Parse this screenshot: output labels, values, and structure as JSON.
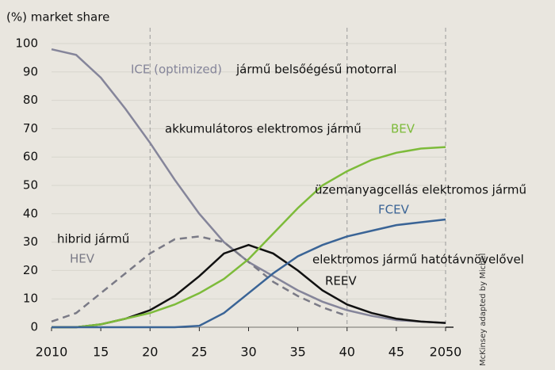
{
  "chart_data": {
    "type": "line",
    "ylabel": "(%) market share",
    "x": [
      2010,
      2012.5,
      2015,
      2017.5,
      2020,
      2022.5,
      2025,
      2027.5,
      2030,
      2032.5,
      2035,
      2037.5,
      2040,
      2042.5,
      2045,
      2047.5,
      2050
    ],
    "series": [
      {
        "name": "ICE (optimized)",
        "color": "#85859a",
        "style": "solid",
        "values": [
          98,
          96,
          88,
          77,
          65,
          52,
          40,
          30,
          23,
          18,
          13,
          9,
          6,
          4,
          2.5,
          2,
          1.5
        ]
      },
      {
        "name": "HEV",
        "color": "#7a7a86",
        "style": "dashed",
        "values": [
          2,
          5,
          12,
          19,
          26,
          31,
          32,
          30,
          23,
          16,
          11,
          7,
          4,
          null,
          null,
          null,
          null
        ]
      },
      {
        "name": "REEV",
        "color": "#111111",
        "style": "solid",
        "values": [
          0,
          0,
          1,
          3,
          6,
          11,
          18,
          26,
          29,
          26,
          20,
          13,
          8,
          5,
          3,
          2,
          1.5
        ]
      },
      {
        "name": "BEV",
        "color": "#7dbb3a",
        "style": "solid",
        "values": [
          0,
          0,
          1,
          3,
          5,
          8,
          12,
          17,
          24,
          33,
          42,
          50,
          55,
          59,
          61.5,
          63,
          63.5
        ]
      },
      {
        "name": "FCEV",
        "color": "#3a6496",
        "style": "solid",
        "values": [
          0,
          0,
          0,
          0,
          0,
          0,
          0.5,
          5,
          12,
          19,
          25,
          29,
          32,
          34,
          36,
          37,
          38
        ]
      }
    ],
    "annotations": [
      "jármű belsőégésű motorral",
      "hibrid jármű",
      "elektromos jármű hatótávnövelővel",
      "akkumulátoros elektromos jármű",
      "üzemanyagcellás elektromos jármű"
    ],
    "credit": "McKinsey adapted by Michel",
    "xlim": [
      2010,
      2050
    ],
    "xticks": [
      2010,
      {
        "value": 2015,
        "label": "15"
      },
      {
        "value": 2020,
        "label": "20"
      },
      {
        "value": 2025,
        "label": "25"
      },
      {
        "value": 2030,
        "label": "30"
      },
      {
        "value": 2035,
        "label": "35"
      },
      {
        "value": 2040,
        "label": "40"
      },
      {
        "value": 2045,
        "label": "45"
      },
      2050
    ],
    "ylim": [
      0,
      100
    ],
    "yticks": [
      0,
      10,
      20,
      30,
      40,
      50,
      60,
      70,
      80,
      90,
      100
    ],
    "xgrid": [
      2020,
      2040,
      2050
    ]
  }
}
